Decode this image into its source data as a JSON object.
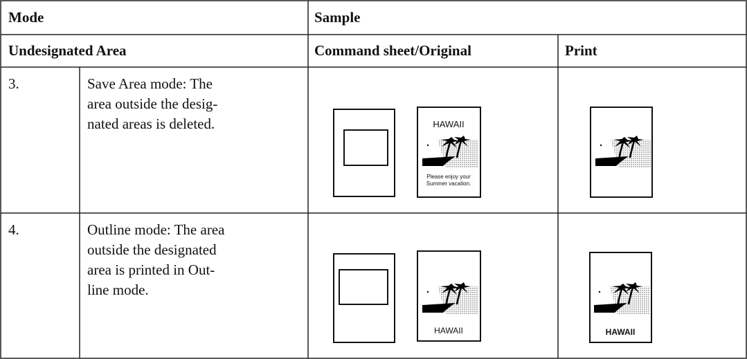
{
  "table": {
    "header": [
      "Mode",
      "Sample"
    ],
    "subheader": [
      "Undesignated Area",
      "Command sheet/Original",
      "Print"
    ],
    "rows": [
      {
        "number": "3.",
        "description": [
          "Save Area mode: The",
          "area outside the desig-",
          "nated areas is deleted."
        ],
        "original_text": [
          "HAWAII",
          "Please enjoy your",
          "Summer vacation."
        ]
      },
      {
        "number": "4.",
        "description": [
          "Outline mode: The area",
          "outside the designated",
          "area is printed in Out-",
          "line mode."
        ],
        "original_text": [
          "HAWAII"
        ],
        "print_text": [
          "HAWAII"
        ]
      }
    ]
  }
}
